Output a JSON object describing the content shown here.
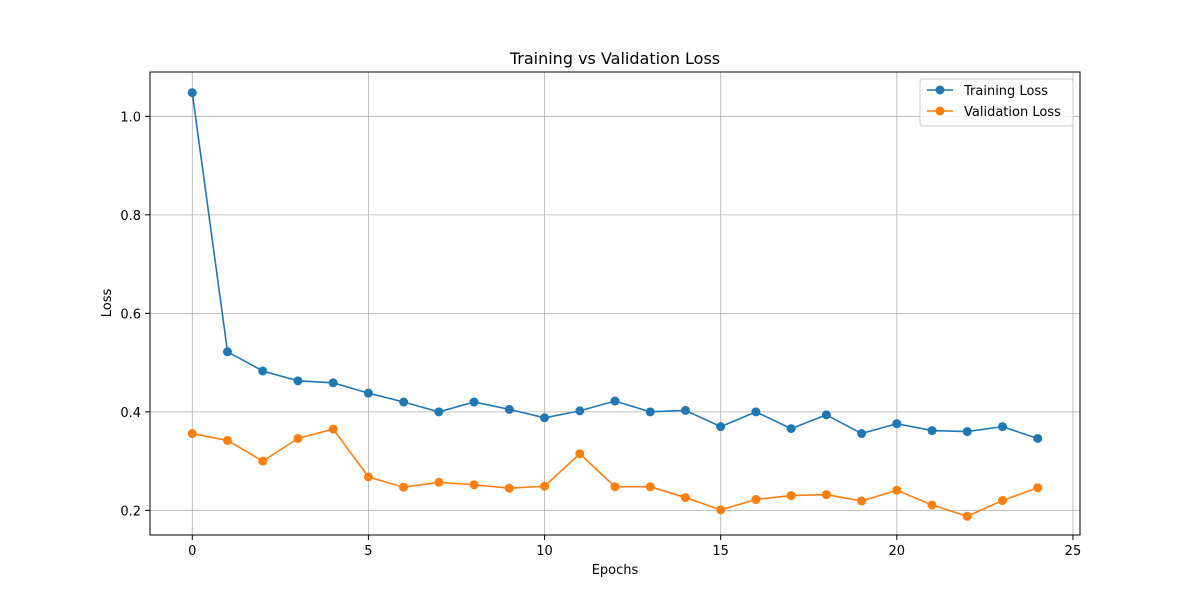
{
  "chart_data": {
    "type": "line",
    "title": "Training vs Validation Loss",
    "xlabel": "Epochs",
    "ylabel": "Loss",
    "xlim": [
      -1.2,
      25.2
    ],
    "ylim": [
      0.15,
      1.09
    ],
    "xticks": [
      0,
      5,
      10,
      15,
      20,
      25
    ],
    "yticks": [
      0.2,
      0.4,
      0.6,
      0.8,
      1.0
    ],
    "xtick_labels": [
      "0",
      "5",
      "10",
      "15",
      "20",
      "25"
    ],
    "ytick_labels": [
      "0.2",
      "0.4",
      "0.6",
      "0.8",
      "1.0"
    ],
    "grid": true,
    "legend_position": "top-right",
    "x": [
      0,
      1,
      2,
      3,
      4,
      5,
      6,
      7,
      8,
      9,
      10,
      11,
      12,
      13,
      14,
      15,
      16,
      17,
      18,
      19,
      20,
      21,
      22,
      23,
      24
    ],
    "series": [
      {
        "name": "Training Loss",
        "color": "#1f77b4",
        "values": [
          1.048,
          0.522,
          0.483,
          0.463,
          0.459,
          0.438,
          0.42,
          0.4,
          0.42,
          0.405,
          0.388,
          0.402,
          0.422,
          0.4,
          0.403,
          0.37,
          0.4,
          0.366,
          0.394,
          0.356,
          0.376,
          0.362,
          0.36,
          0.37,
          0.346
        ]
      },
      {
        "name": "Validation Loss",
        "color": "#ff7f0e",
        "values": [
          0.356,
          0.342,
          0.3,
          0.346,
          0.365,
          0.268,
          0.247,
          0.257,
          0.252,
          0.245,
          0.249,
          0.315,
          0.248,
          0.248,
          0.226,
          0.201,
          0.222,
          0.23,
          0.232,
          0.219,
          0.241,
          0.211,
          0.188,
          0.22,
          0.246
        ]
      }
    ]
  }
}
